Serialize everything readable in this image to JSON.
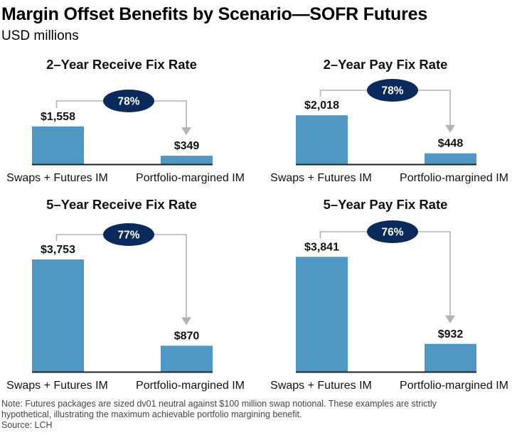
{
  "header": {
    "title": "Margin Offset Benefits by Scenario—SOFR Futures",
    "subtitle": "USD millions"
  },
  "colors": {
    "bar": "#4f98c3",
    "ellipse": "#0b2a5c",
    "ellipse_text": "#ffffff",
    "connector": "#b3b3b3",
    "baseline": "#222222"
  },
  "chart_data": [
    {
      "type": "bar",
      "title": "2–Year Receive Fix Rate",
      "categories": [
        "Swaps + Futures IM",
        "Portfolio-margined IM"
      ],
      "values": [
        1558,
        349
      ],
      "value_labels": [
        "$1,558",
        "$349"
      ],
      "reduction_label": "78%",
      "xlabel": "",
      "ylabel": "USD millions"
    },
    {
      "type": "bar",
      "title": "2–Year Pay Fix Rate",
      "categories": [
        "Swaps + Futures IM",
        "Portfolio-margined IM"
      ],
      "values": [
        2018,
        448
      ],
      "value_labels": [
        "$2,018",
        "$448"
      ],
      "reduction_label": "78%",
      "xlabel": "",
      "ylabel": "USD millions"
    },
    {
      "type": "bar",
      "title": "5–Year Receive Fix Rate",
      "categories": [
        "Swaps + Futures IM",
        "Portfolio-margined IM"
      ],
      "values": [
        3753,
        870
      ],
      "value_labels": [
        "$3,753",
        "$870"
      ],
      "reduction_label": "77%",
      "xlabel": "",
      "ylabel": "USD millions"
    },
    {
      "type": "bar",
      "title": "5–Year Pay Fix Rate",
      "categories": [
        "Swaps + Futures IM",
        "Portfolio-margined IM"
      ],
      "values": [
        3841,
        932
      ],
      "value_labels": [
        "$3,841",
        "$932"
      ],
      "reduction_label": "76%",
      "xlabel": "",
      "ylabel": "USD millions"
    }
  ],
  "footer": {
    "note_line1": "Note: Futures packages are sized dv01 neutral against $100 million swap notional. These examples are strictly",
    "note_line2": "hypothetical, illustrating the maximum achievable portfolio margining benefit.",
    "source": "Source: LCH"
  }
}
